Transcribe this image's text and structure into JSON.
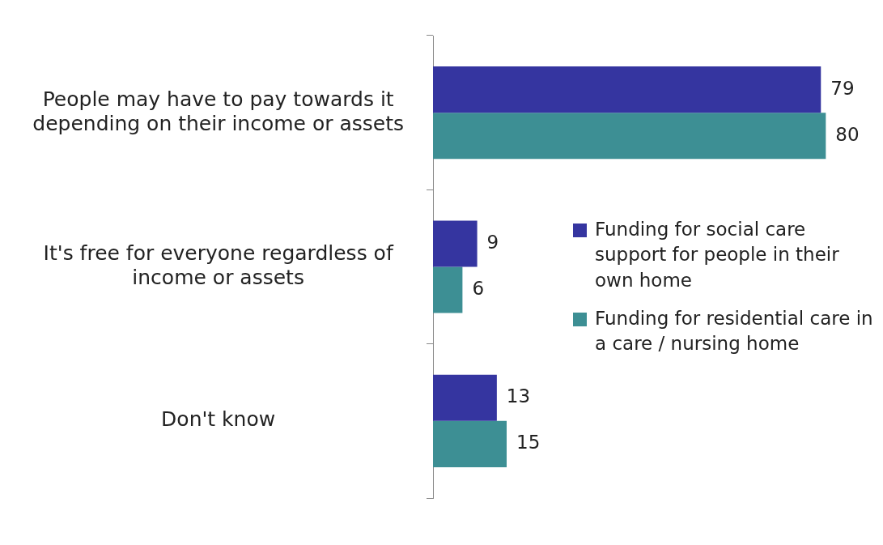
{
  "chart_data": {
    "type": "bar",
    "orientation": "horizontal",
    "categories": [
      "People may have to pay towards it depending on their income or assets",
      "It's free for everyone regardless of income or assets",
      "Don't know"
    ],
    "series": [
      {
        "name": "Funding for social care support for people in their own home",
        "color": "#3535a0",
        "values": [
          79,
          9,
          13
        ]
      },
      {
        "name": "Funding for residential care in a care / nursing home",
        "color": "#3d8f94",
        "values": [
          80,
          6,
          15
        ]
      }
    ],
    "data_labels": true,
    "legend": "right",
    "tick_labels": "y",
    "grid": false
  }
}
